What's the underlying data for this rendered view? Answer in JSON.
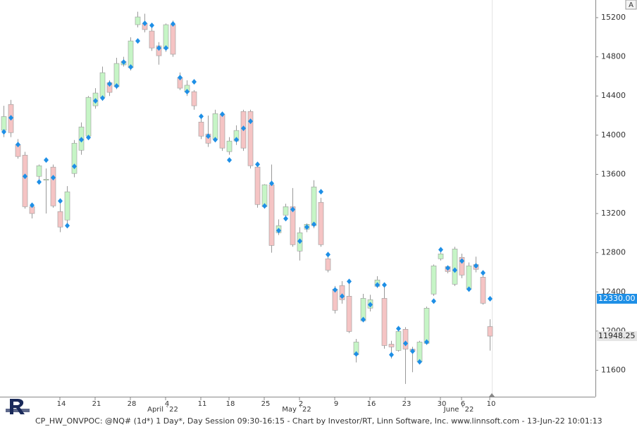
{
  "chart_data": {
    "type": "candlestick",
    "footer": "CP_HW_ONVPOC: @NQ# (1d*) 1 Day*, Day Session 09:30-16:15 - Chart by Investor/RT, Linn Software, Inc. www.linnsoft.com - 13-Jun-22 10:01:13",
    "button": "A",
    "categories": [
      null,
      null,
      null,
      null,
      null,
      null,
      null,
      null,
      "14",
      null,
      null,
      null,
      null,
      "21",
      null,
      null,
      null,
      null,
      "28",
      null,
      null,
      null,
      null,
      "4",
      null,
      null,
      null,
      null,
      "11",
      null,
      null,
      null,
      "18",
      null,
      null,
      null,
      null,
      "25",
      null,
      null,
      null,
      null,
      "2",
      null,
      null,
      null,
      null,
      "9",
      null,
      null,
      null,
      null,
      "16",
      null,
      null,
      null,
      null,
      "23",
      null,
      null,
      null,
      null,
      "30",
      null,
      null,
      "6",
      null,
      null,
      null,
      "10"
    ],
    "month_categories": [
      null,
      null,
      null,
      null,
      null,
      null,
      null,
      null,
      null,
      null,
      null,
      null,
      null,
      null,
      null,
      null,
      null,
      null,
      null,
      null,
      null,
      null,
      null,
      "April `22",
      null,
      null,
      null,
      null,
      null,
      null,
      null,
      null,
      null,
      null,
      null,
      null,
      null,
      null,
      null,
      null,
      null,
      null,
      "May `22",
      null,
      null,
      null,
      null,
      null,
      null,
      null,
      null,
      null,
      null,
      null,
      null,
      null,
      null,
      null,
      null,
      null,
      null,
      null,
      null,
      null,
      null,
      "June `22",
      null,
      null,
      null,
      null
    ],
    "open": [
      14050,
      14314,
      13904,
      13796,
      13270,
      13580,
      13540,
      13674,
      13220,
      13134,
      13609,
      13846,
      13991,
      14300,
      14386,
      14537,
      14494,
      14718,
      14689,
      15128,
      15142,
      15063,
      14912,
      14883,
      15128,
      14588,
      14440,
      14444,
      14134,
      14012,
      13960,
      14214,
      13832,
      13940,
      14242,
      14242,
      13674,
      13270,
      13494,
      13004,
      13184,
      13270,
      12817,
      13040,
      13076,
      13314,
      12738,
      12428,
      12464,
      12356,
      11758,
      12104,
      12234,
      12457,
      12334,
      11866,
      11802,
      12018,
      11816,
      11686,
      11874,
      12378,
      12738,
      12659,
      12478,
      12752,
      12428,
      12680,
      12550,
      12046
    ],
    "high": [
      14300,
      14360,
      13960,
      13830,
      13310,
      13700,
      13660,
      13700,
      13300,
      13480,
      13950,
      14130,
      14400,
      14480,
      14700,
      14560,
      14790,
      14800,
      15000,
      15260,
      15240,
      15100,
      14950,
      15140,
      15170,
      14640,
      14560,
      14460,
      14190,
      14200,
      14260,
      14240,
      13980,
      14100,
      14260,
      14260,
      13690,
      13500,
      13700,
      13140,
      13300,
      13460,
      13060,
      13100,
      13540,
      13360,
      12790,
      12460,
      12510,
      12530,
      11920,
      12380,
      12370,
      12560,
      12450,
      11900,
      12030,
      12040,
      11840,
      11900,
      12250,
      12680,
      12840,
      12670,
      12860,
      12790,
      12700,
      12760,
      12590,
      12120
    ],
    "low": [
      13980,
      13980,
      13760,
      13250,
      13150,
      13500,
      13200,
      13260,
      13010,
      13100,
      13570,
      13800,
      13950,
      14270,
      14350,
      14400,
      14470,
      14700,
      14660,
      15100,
      15050,
      14860,
      14720,
      14850,
      14800,
      14460,
      14400,
      14260,
      13960,
      13880,
      13930,
      13840,
      13800,
      13900,
      13840,
      13660,
      13260,
      13250,
      12800,
      12980,
      13150,
      12860,
      12720,
      13010,
      13050,
      12860,
      12600,
      12180,
      12280,
      11980,
      11680,
      12090,
      12200,
      12440,
      11820,
      11720,
      11790,
      11460,
      11580,
      11660,
      11860,
      12360,
      12720,
      12590,
      12460,
      12540,
      12410,
      12600,
      12270,
      11800
    ],
    "close": [
      14190,
      14026,
      13782,
      13270,
      13200,
      13688,
      13550,
      13278,
      13062,
      13422,
      13918,
      14084,
      14386,
      14430,
      14638,
      14437,
      14732,
      14754,
      14962,
      15207,
      15078,
      14890,
      14811,
      15128,
      14826,
      14480,
      14510,
      14300,
      13990,
      13918,
      14220,
      13868,
      13940,
      14048,
      13868,
      13688,
      13292,
      13494,
      12874,
      13076,
      13270,
      12882,
      13004,
      13090,
      13472,
      12882,
      12622,
      12212,
      12320,
      11996,
      11888,
      12334,
      12320,
      12522,
      11852,
      11838,
      11996,
      11816,
      11794,
      11888,
      12234,
      12666,
      12788,
      12608,
      12838,
      12572,
      12666,
      12630,
      12284,
      11948.25
    ],
    "signal": [
      14034,
      14178,
      13904,
      13580,
      13285,
      13522,
      13746,
      13566,
      13328,
      13076,
      13681,
      13954,
      13976,
      14350,
      14379,
      14523,
      14502,
      14746,
      14696,
      14962,
      15142,
      15121,
      14890,
      14890,
      15135,
      14588,
      14444,
      14545,
      14192,
      13990,
      13954,
      14214,
      13746,
      13954,
      14070,
      14142,
      13702,
      13278,
      13508,
      13026,
      13148,
      13242,
      12918,
      13062,
      13090,
      13422,
      12781,
      12421,
      12356,
      12507,
      11766,
      12118,
      12270,
      12471,
      12471,
      11758,
      12025,
      11874,
      11794,
      11686,
      11888,
      12306,
      12831,
      12644,
      12622,
      12716,
      12428,
      12666,
      12594,
      12330
    ],
    "up_color": "#c6f5c6",
    "down_color": "#f5c4c4",
    "signal_color": "#1e8fe6",
    "ylim": [
      11330,
      15380
    ],
    "yticks": [
      11600,
      12000,
      12400,
      12800,
      13200,
      13600,
      14000,
      14400,
      14800,
      15200
    ],
    "price_tags": [
      {
        "value": 12330,
        "label": "12330.00",
        "color": "#1e8fe6"
      },
      {
        "value": 11948.25,
        "label": "11948.25",
        "color": "#e6e6e6"
      }
    ]
  }
}
